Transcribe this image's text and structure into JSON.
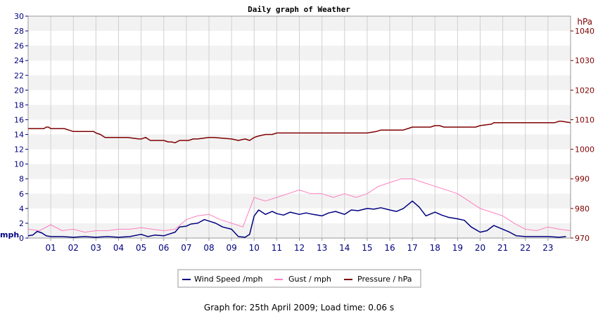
{
  "chart_data": {
    "type": "line",
    "title": "Daily graph of Weather",
    "left_axis_unit": "mph",
    "right_axis_unit": "hPa",
    "left_ylim": [
      0,
      30
    ],
    "left_ticks": [
      0,
      2,
      4,
      6,
      8,
      10,
      12,
      14,
      16,
      18,
      20,
      22,
      24,
      26,
      28,
      30
    ],
    "right_ylim": [
      970,
      1045
    ],
    "right_ticks": [
      970,
      980,
      990,
      1000,
      1010,
      1020,
      1030,
      1040
    ],
    "x_range": [
      0,
      24
    ],
    "x_tick_labels": [
      "01",
      "02",
      "03",
      "04",
      "05",
      "06",
      "07",
      "08",
      "09",
      "10",
      "11",
      "12",
      "13",
      "14",
      "15",
      "16",
      "17",
      "18",
      "19",
      "20",
      "21",
      "22",
      "23"
    ],
    "grid": true,
    "legend_position": "bottom",
    "series": [
      {
        "name": "Wind Speed /mph",
        "axis": "left",
        "color": "#00007f",
        "x": [
          0,
          0.2,
          0.4,
          0.6,
          0.8,
          1.0,
          1.5,
          2,
          2.5,
          3,
          3.5,
          4,
          4.5,
          5,
          5.3,
          5.6,
          6,
          6.3,
          6.5,
          6.7,
          7,
          7.2,
          7.5,
          7.8,
          8,
          8.3,
          8.6,
          9,
          9.3,
          9.6,
          9.8,
          10,
          10.2,
          10.5,
          10.8,
          11,
          11.3,
          11.6,
          12,
          12.3,
          12.6,
          13,
          13.3,
          13.6,
          14,
          14.3,
          14.6,
          15,
          15.3,
          15.6,
          16,
          16.3,
          16.6,
          17,
          17.3,
          17.6,
          18,
          18.3,
          18.6,
          19,
          19.3,
          19.6,
          20,
          20.3,
          20.6,
          21,
          21.3,
          21.6,
          22,
          22.5,
          23,
          23.5,
          23.8
        ],
        "values": [
          0.3,
          0.4,
          0.9,
          0.7,
          0.3,
          0.2,
          0.2,
          0.1,
          0.2,
          0.1,
          0.2,
          0.1,
          0.2,
          0.5,
          0.2,
          0.4,
          0.3,
          0.6,
          0.8,
          1.5,
          1.6,
          1.9,
          2.0,
          2.5,
          2.3,
          2.0,
          1.5,
          1.2,
          0.2,
          0.1,
          0.5,
          3.0,
          3.8,
          3.2,
          3.6,
          3.3,
          3.1,
          3.5,
          3.2,
          3.4,
          3.2,
          3.0,
          3.4,
          3.6,
          3.2,
          3.8,
          3.7,
          4.0,
          3.9,
          4.1,
          3.8,
          3.6,
          4.0,
          5.0,
          4.2,
          3.0,
          3.5,
          3.1,
          2.8,
          2.6,
          2.4,
          1.5,
          0.8,
          1.0,
          1.7,
          1.2,
          0.8,
          0.3,
          0.2,
          0.2,
          0.2,
          0.1,
          0.2
        ]
      },
      {
        "name": "Gust / mph",
        "axis": "left",
        "color": "#ff7fbf",
        "x": [
          0,
          0.5,
          1,
          1.5,
          2,
          2.5,
          3,
          3.5,
          4,
          4.5,
          5,
          5.5,
          6,
          6.5,
          7,
          7.5,
          8,
          8.5,
          9,
          9.5,
          10,
          10.5,
          11,
          11.5,
          12,
          12.5,
          13,
          13.5,
          14,
          14.5,
          15,
          15.5,
          16,
          16.5,
          17,
          17.5,
          18,
          18.5,
          19,
          19.5,
          20,
          20.5,
          21,
          21.5,
          22,
          22.5,
          23,
          23.5,
          24
        ],
        "values": [
          1.2,
          1.0,
          1.8,
          1.0,
          1.2,
          0.8,
          1.0,
          1.0,
          1.2,
          1.2,
          1.4,
          1.2,
          1.0,
          1.2,
          2.5,
          3.0,
          3.2,
          2.5,
          2.0,
          1.5,
          5.5,
          5.0,
          5.5,
          6.0,
          6.5,
          6.0,
          6.0,
          5.5,
          6.0,
          5.5,
          6.0,
          7.0,
          7.5,
          8.0,
          8.0,
          7.5,
          7.0,
          6.5,
          6.0,
          5.0,
          4.0,
          3.5,
          3.0,
          2.0,
          1.2,
          1.0,
          1.5,
          1.2,
          1.0
        ]
      },
      {
        "name": "Pressure / hPa",
        "axis": "right",
        "color": "#7f0000",
        "x": [
          0,
          0.7,
          0.8,
          0.9,
          1.0,
          1.6,
          1.8,
          2,
          2.9,
          3.0,
          3.2,
          3.4,
          4,
          4.4,
          4.9,
          5.0,
          5.2,
          5.4,
          6,
          6.2,
          6.35,
          6.5,
          6.7,
          7.1,
          7.3,
          7.5,
          8,
          8.2,
          9,
          9.3,
          9.6,
          9.8,
          10,
          10.2,
          10.5,
          10.8,
          11,
          12,
          13,
          14,
          15,
          15.4,
          15.6,
          16,
          16.6,
          16.8,
          17,
          17.8,
          18,
          18.2,
          18.4,
          19,
          19.8,
          20,
          20.5,
          20.6,
          21,
          22,
          23,
          23.3,
          23.5,
          23.6,
          24
        ],
        "values": [
          1007,
          1007,
          1007.5,
          1007.5,
          1007,
          1007,
          1006.5,
          1006,
          1006,
          1005.5,
          1005,
          1004,
          1004,
          1004,
          1003.5,
          1003.5,
          1004,
          1003,
          1003,
          1002.5,
          1002.5,
          1002.2,
          1003,
          1003,
          1003.5,
          1003.5,
          1004,
          1004,
          1003.5,
          1003,
          1003.5,
          1003,
          1004,
          1004.5,
          1005,
          1005,
          1005.5,
          1005.5,
          1005.5,
          1005.5,
          1005.5,
          1006,
          1006.5,
          1006.5,
          1006.5,
          1007,
          1007.5,
          1007.5,
          1008,
          1008,
          1007.5,
          1007.5,
          1007.5,
          1008,
          1008.5,
          1009,
          1009,
          1009,
          1009,
          1009,
          1009.5,
          1009.5,
          1009
        ]
      }
    ]
  },
  "legend": {
    "wind": "Wind Speed /mph",
    "gust": "Gust / mph",
    "pressure": "Pressure / hPa"
  },
  "footer": "Graph for: 25th April 2009; Load time: 0.06 s"
}
